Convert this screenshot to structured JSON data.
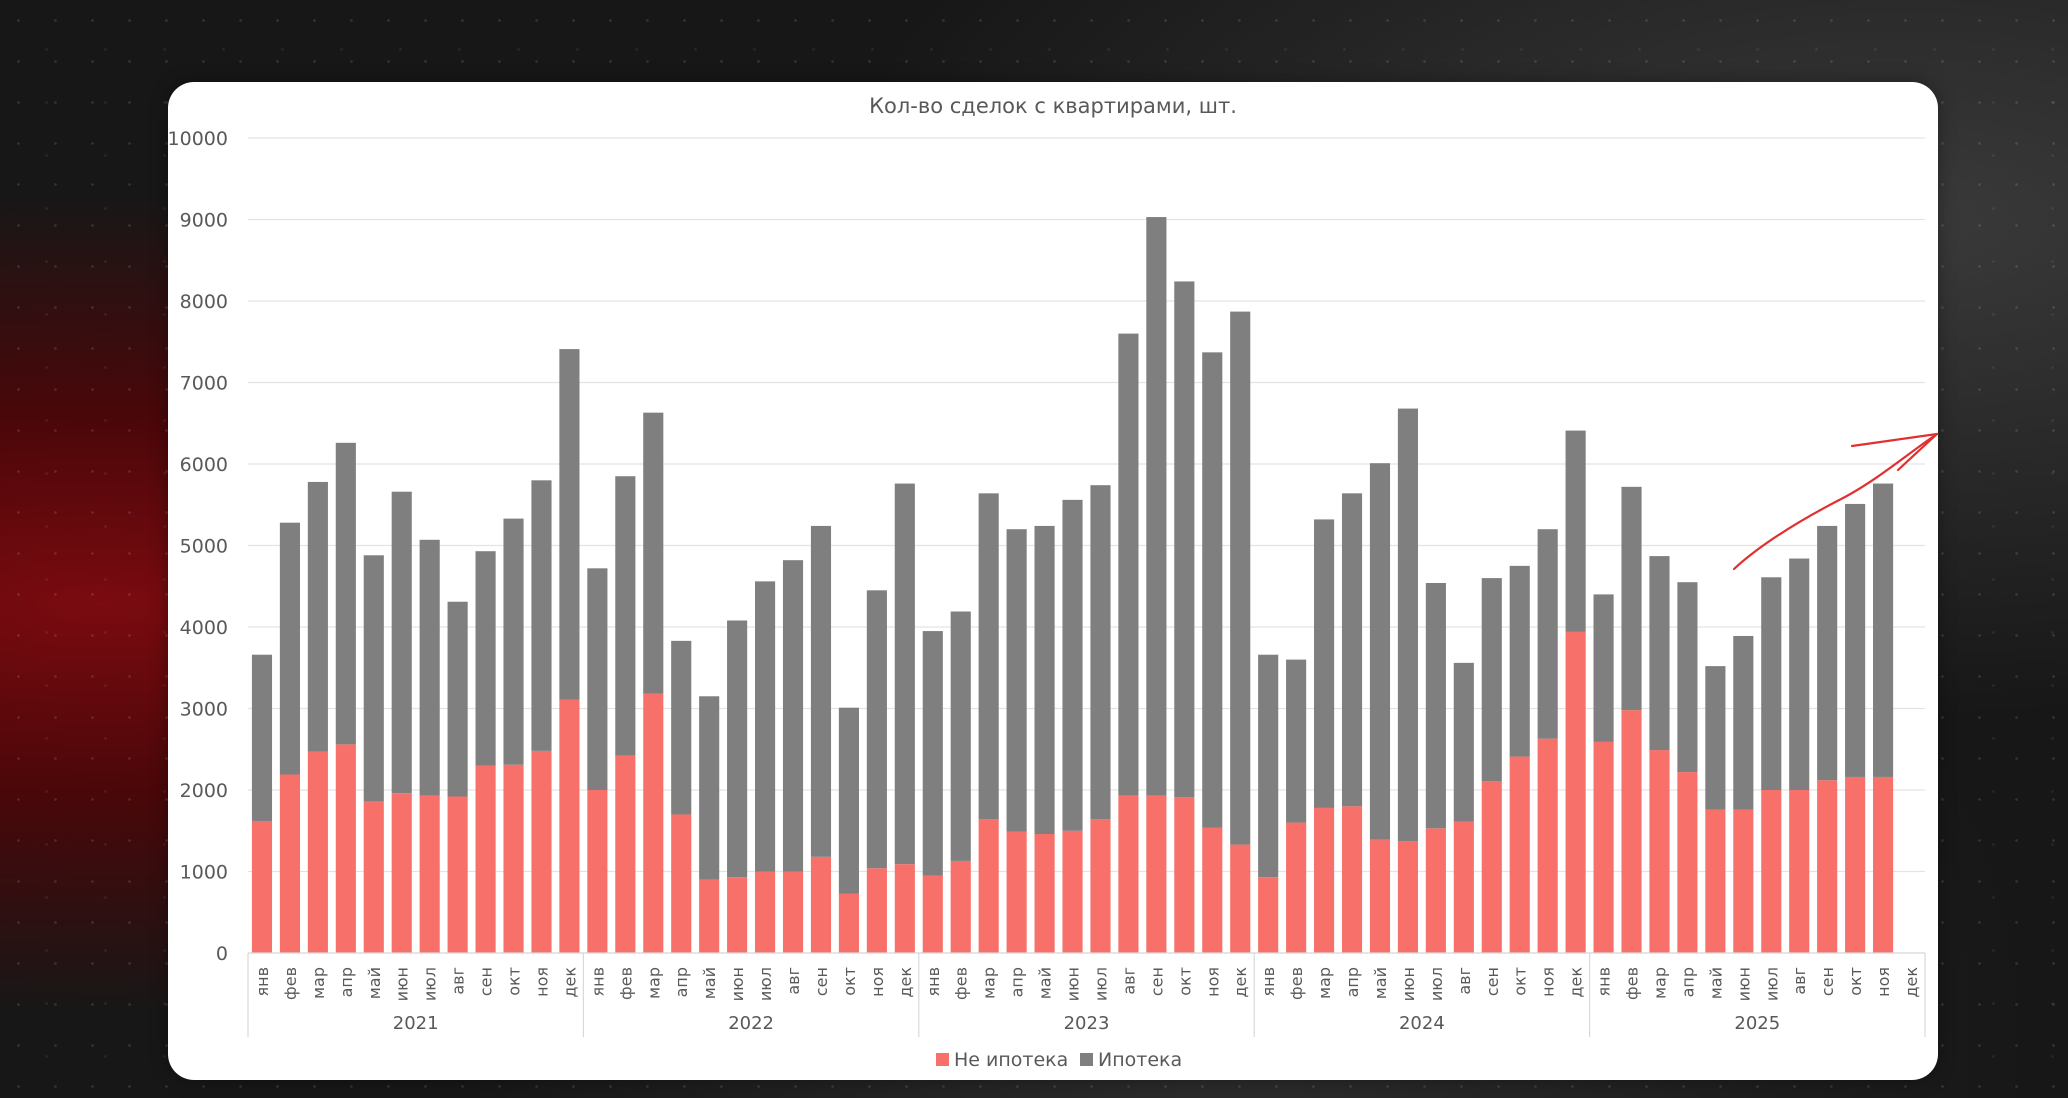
{
  "chart_data": {
    "type": "bar",
    "stacked": true,
    "title": "Кол-во сделок с квартирами, шт.",
    "ylim": [
      0,
      10000
    ],
    "yticks": [
      0,
      1000,
      2000,
      3000,
      4000,
      5000,
      6000,
      7000,
      8000,
      9000,
      10000
    ],
    "grid": true,
    "legend": "bottom",
    "months": [
      "янв",
      "фев",
      "мар",
      "апр",
      "май",
      "июн",
      "июл",
      "авг",
      "сен",
      "окт",
      "ноя",
      "дек"
    ],
    "years": [
      "2021",
      "2022",
      "2023",
      "2024",
      "2025"
    ],
    "series": [
      {
        "name": "Не ипотека",
        "color": "#f8706a",
        "values": [
          1620,
          2190,
          2470,
          2560,
          1860,
          1960,
          1930,
          1920,
          2300,
          2310,
          2480,
          3110,
          2000,
          2420,
          3180,
          1700,
          900,
          930,
          1000,
          1000,
          1180,
          730,
          1040,
          1090,
          950,
          1130,
          1640,
          1490,
          1460,
          1500,
          1640,
          1930,
          1930,
          1910,
          1540,
          1330,
          930,
          1600,
          1780,
          1800,
          1390,
          1370,
          1530,
          1610,
          2110,
          2410,
          2630,
          3940,
          2590,
          2980,
          2490,
          2220,
          1760,
          1760,
          2000,
          2000,
          2120,
          2160,
          2160,
          null
        ]
      },
      {
        "name": "Ипотека",
        "color": "#7f7f7f",
        "values": [
          2040,
          3090,
          3310,
          3700,
          3020,
          3700,
          3140,
          2390,
          2630,
          3020,
          3320,
          4300,
          2720,
          3430,
          3450,
          2130,
          2250,
          3150,
          3560,
          3820,
          4060,
          2280,
          3410,
          4670,
          3000,
          3060,
          4000,
          3710,
          3780,
          4060,
          4100,
          5670,
          7100,
          6330,
          5830,
          6540,
          2730,
          2000,
          3540,
          3840,
          4620,
          5310,
          3010,
          1950,
          2490,
          2340,
          2570,
          2470,
          1810,
          2740,
          2380,
          2330,
          1760,
          2130,
          2610,
          2840,
          3120,
          3350,
          3600,
          null
        ]
      }
    ]
  }
}
